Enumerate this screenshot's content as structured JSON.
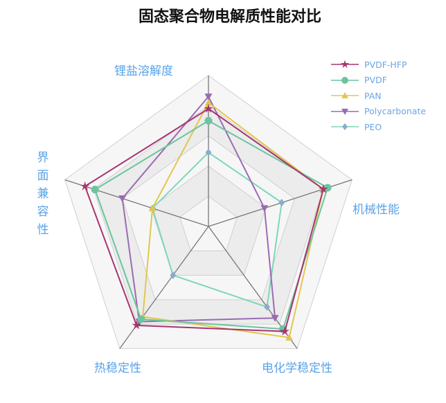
{
  "chart_data": {
    "type": "radar",
    "title": "固态聚合物电解质性能对比",
    "indicators": [
      "锂盐溶解度",
      "机械性能",
      "电化学稳定性",
      "热稳定性",
      "界面兼容性"
    ],
    "max": 10,
    "split_number": 5,
    "legend_position": "top-right",
    "series": [
      {
        "name": "PVDF-HFP",
        "values": [
          7.8,
          8.0,
          8.6,
          8.1,
          8.6
        ],
        "color": "#a63570",
        "line_color": "#a63570",
        "marker": "star"
      },
      {
        "name": "PVDF",
        "values": [
          7.0,
          8.3,
          8.4,
          7.6,
          7.9
        ],
        "color": "#6cc4a0",
        "line_color": "#6cc4a0",
        "marker": "circle"
      },
      {
        "name": "PAN",
        "values": [
          8.2,
          8.0,
          9.1,
          7.4,
          3.9
        ],
        "color": "#e2c650",
        "line_color": "#e2c650",
        "marker": "triangle"
      },
      {
        "name": "Polycarbonate",
        "values": [
          8.6,
          3.9,
          7.5,
          7.8,
          6.0
        ],
        "color": "#9a6bb2",
        "line_color": "#9a6bb2",
        "marker": "triangle-down"
      },
      {
        "name": "PEO",
        "values": [
          4.9,
          5.1,
          6.6,
          4.0,
          3.9
        ],
        "color": "#8aaccc",
        "line_color": "#7fd6ba",
        "marker": "diamond"
      }
    ]
  }
}
